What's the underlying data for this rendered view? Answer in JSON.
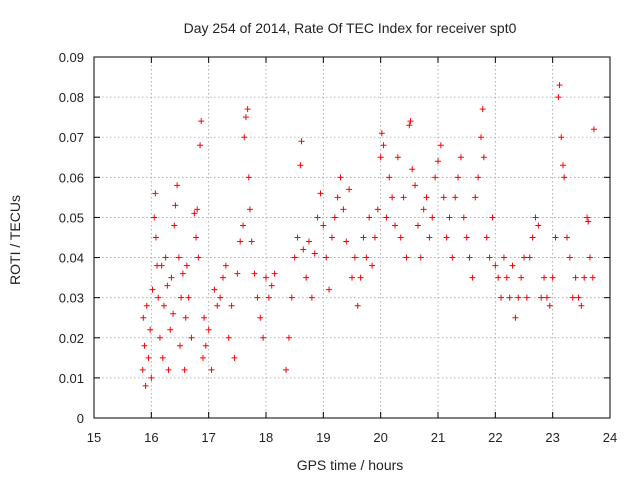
{
  "chart_data": {
    "type": "scatter",
    "title": "Day 254 of 2014, Rate Of TEC Index for receiver spt0",
    "xlabel": "GPS time / hours",
    "ylabel": "ROTI / TECUs",
    "xlim": [
      15,
      24
    ],
    "ylim": [
      0,
      0.09
    ],
    "x_ticks": [
      15,
      16,
      17,
      18,
      19,
      20,
      21,
      22,
      23,
      24
    ],
    "x_tick_labels": [
      "15",
      "16",
      "17",
      "18",
      "19",
      "20",
      "21",
      "22",
      "23",
      "24"
    ],
    "y_ticks": [
      0,
      0.01,
      0.02,
      0.03,
      0.04,
      0.05,
      0.06,
      0.07,
      0.08,
      0.09
    ],
    "y_tick_labels": [
      "0",
      "0.01",
      "0.02",
      "0.03",
      "0.04",
      "0.05",
      "0.06",
      "0.07",
      "0.08",
      "0.09"
    ],
    "grid": true,
    "marker": "plus",
    "series_color": "#ff0000",
    "series": [
      {
        "name": "spt0",
        "points": [
          [
            15.85,
            0.012
          ],
          [
            15.86,
            0.025
          ],
          [
            15.88,
            0.018
          ],
          [
            15.9,
            0.008
          ],
          [
            15.92,
            0.028
          ],
          [
            15.95,
            0.015
          ],
          [
            15.98,
            0.022
          ],
          [
            16.0,
            0.01
          ],
          [
            16.02,
            0.032
          ],
          [
            16.05,
            0.05
          ],
          [
            16.07,
            0.056
          ],
          [
            16.08,
            0.045
          ],
          [
            16.1,
            0.038
          ],
          [
            16.12,
            0.03
          ],
          [
            16.15,
            0.02
          ],
          [
            16.18,
            0.038
          ],
          [
            16.2,
            0.015
          ],
          [
            16.22,
            0.028
          ],
          [
            16.25,
            0.04
          ],
          [
            16.28,
            0.033
          ],
          [
            16.3,
            0.012
          ],
          [
            16.33,
            0.022
          ],
          [
            16.35,
            0.035
          ],
          [
            16.38,
            0.026
          ],
          [
            16.4,
            0.048
          ],
          [
            16.42,
            0.053
          ],
          [
            16.45,
            0.058
          ],
          [
            16.48,
            0.04
          ],
          [
            16.5,
            0.018
          ],
          [
            16.52,
            0.03
          ],
          [
            16.55,
            0.036
          ],
          [
            16.58,
            0.012
          ],
          [
            16.6,
            0.025
          ],
          [
            16.62,
            0.038
          ],
          [
            16.65,
            0.03
          ],
          [
            16.7,
            0.02
          ],
          [
            16.75,
            0.051
          ],
          [
            16.78,
            0.045
          ],
          [
            16.8,
            0.052
          ],
          [
            16.82,
            0.04
          ],
          [
            16.85,
            0.068
          ],
          [
            16.87,
            0.074
          ],
          [
            16.9,
            0.015
          ],
          [
            16.92,
            0.025
          ],
          [
            16.95,
            0.018
          ],
          [
            17.0,
            0.022
          ],
          [
            17.05,
            0.012
          ],
          [
            17.1,
            0.032
          ],
          [
            17.15,
            0.028
          ],
          [
            17.2,
            0.03
          ],
          [
            17.25,
            0.035
          ],
          [
            17.3,
            0.038
          ],
          [
            17.35,
            0.02
          ],
          [
            17.4,
            0.028
          ],
          [
            17.45,
            0.015
          ],
          [
            17.5,
            0.036
          ],
          [
            17.55,
            0.044
          ],
          [
            17.6,
            0.048
          ],
          [
            17.62,
            0.07
          ],
          [
            17.65,
            0.075
          ],
          [
            17.68,
            0.077
          ],
          [
            17.7,
            0.06
          ],
          [
            17.72,
            0.052
          ],
          [
            17.75,
            0.044
          ],
          [
            17.8,
            0.036
          ],
          [
            17.85,
            0.03
          ],
          [
            17.9,
            0.025
          ],
          [
            17.95,
            0.02
          ],
          [
            18.0,
            0.035
          ],
          [
            18.05,
            0.03
          ],
          [
            18.1,
            0.033
          ],
          [
            18.15,
            0.036
          ],
          [
            18.35,
            0.012
          ],
          [
            18.4,
            0.02
          ],
          [
            18.45,
            0.03
          ],
          [
            18.5,
            0.04
          ],
          [
            18.55,
            0.045
          ],
          [
            18.6,
            0.063
          ],
          [
            18.62,
            0.069
          ],
          [
            18.65,
            0.042
          ],
          [
            18.7,
            0.035
          ],
          [
            18.75,
            0.044
          ],
          [
            18.8,
            0.03
          ],
          [
            18.85,
            0.041
          ],
          [
            18.9,
            0.05
          ],
          [
            18.95,
            0.056
          ],
          [
            19.0,
            0.048
          ],
          [
            19.05,
            0.04
          ],
          [
            19.1,
            0.032
          ],
          [
            19.15,
            0.045
          ],
          [
            19.2,
            0.05
          ],
          [
            19.25,
            0.055
          ],
          [
            19.3,
            0.06
          ],
          [
            19.35,
            0.052
          ],
          [
            19.4,
            0.044
          ],
          [
            19.45,
            0.057
          ],
          [
            19.5,
            0.035
          ],
          [
            19.55,
            0.04
          ],
          [
            19.6,
            0.028
          ],
          [
            19.65,
            0.035
          ],
          [
            19.7,
            0.045
          ],
          [
            19.75,
            0.04
          ],
          [
            19.8,
            0.05
          ],
          [
            19.85,
            0.038
          ],
          [
            19.9,
            0.045
          ],
          [
            19.95,
            0.052
          ],
          [
            20.0,
            0.065
          ],
          [
            20.02,
            0.071
          ],
          [
            20.05,
            0.068
          ],
          [
            20.1,
            0.05
          ],
          [
            20.15,
            0.06
          ],
          [
            20.2,
            0.055
          ],
          [
            20.25,
            0.048
          ],
          [
            20.3,
            0.065
          ],
          [
            20.35,
            0.045
          ],
          [
            20.4,
            0.055
          ],
          [
            20.45,
            0.04
          ],
          [
            20.5,
            0.073
          ],
          [
            20.52,
            0.074
          ],
          [
            20.55,
            0.062
          ],
          [
            20.6,
            0.058
          ],
          [
            20.65,
            0.048
          ],
          [
            20.7,
            0.04
          ],
          [
            20.75,
            0.052
          ],
          [
            20.8,
            0.055
          ],
          [
            20.85,
            0.045
          ],
          [
            20.9,
            0.05
          ],
          [
            20.95,
            0.06
          ],
          [
            21.0,
            0.064
          ],
          [
            21.05,
            0.068
          ],
          [
            21.1,
            0.055
          ],
          [
            21.15,
            0.045
          ],
          [
            21.2,
            0.05
          ],
          [
            21.25,
            0.04
          ],
          [
            21.3,
            0.055
          ],
          [
            21.35,
            0.06
          ],
          [
            21.4,
            0.065
          ],
          [
            21.45,
            0.05
          ],
          [
            21.5,
            0.045
          ],
          [
            21.55,
            0.04
          ],
          [
            21.6,
            0.035
          ],
          [
            21.65,
            0.055
          ],
          [
            21.7,
            0.06
          ],
          [
            21.75,
            0.07
          ],
          [
            21.78,
            0.077
          ],
          [
            21.8,
            0.065
          ],
          [
            21.85,
            0.045
          ],
          [
            21.9,
            0.04
          ],
          [
            21.95,
            0.05
          ],
          [
            22.0,
            0.038
          ],
          [
            22.05,
            0.035
          ],
          [
            22.1,
            0.03
          ],
          [
            22.15,
            0.04
          ],
          [
            22.2,
            0.035
          ],
          [
            22.25,
            0.03
          ],
          [
            22.3,
            0.038
          ],
          [
            22.35,
            0.025
          ],
          [
            22.4,
            0.03
          ],
          [
            22.45,
            0.035
          ],
          [
            22.5,
            0.04
          ],
          [
            22.55,
            0.03
          ],
          [
            22.6,
            0.04
          ],
          [
            22.65,
            0.045
          ],
          [
            22.7,
            0.05
          ],
          [
            22.75,
            0.048
          ],
          [
            22.8,
            0.03
          ],
          [
            22.85,
            0.035
          ],
          [
            22.9,
            0.03
          ],
          [
            22.95,
            0.028
          ],
          [
            23.0,
            0.035
          ],
          [
            23.05,
            0.045
          ],
          [
            23.1,
            0.08
          ],
          [
            23.12,
            0.083
          ],
          [
            23.15,
            0.07
          ],
          [
            23.18,
            0.063
          ],
          [
            23.2,
            0.06
          ],
          [
            23.25,
            0.045
          ],
          [
            23.3,
            0.04
          ],
          [
            23.35,
            0.03
          ],
          [
            23.4,
            0.035
          ],
          [
            23.45,
            0.03
          ],
          [
            23.5,
            0.028
          ],
          [
            23.55,
            0.035
          ],
          [
            23.6,
            0.05
          ],
          [
            23.62,
            0.049
          ],
          [
            23.65,
            0.04
          ],
          [
            23.7,
            0.035
          ],
          [
            23.72,
            0.072
          ]
        ]
      }
    ]
  }
}
